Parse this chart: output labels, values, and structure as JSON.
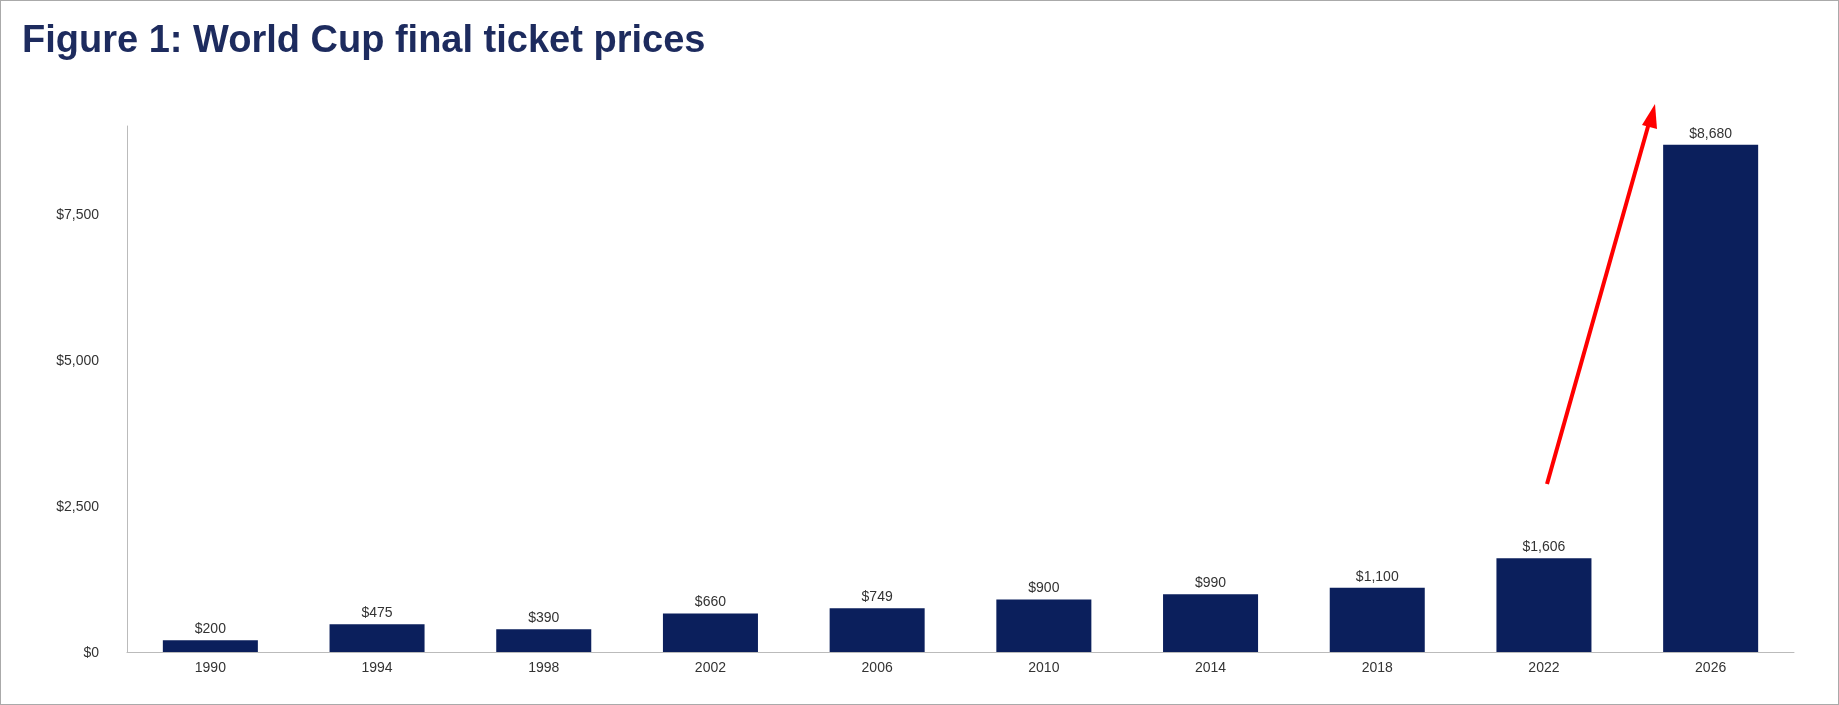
{
  "chart_data": {
    "type": "bar",
    "title": "Figure 1: World Cup final ticket prices",
    "categories": [
      "1990",
      "1994",
      "1998",
      "2002",
      "2006",
      "2010",
      "2014",
      "2018",
      "2022",
      "2026"
    ],
    "values": [
      200,
      475,
      390,
      660,
      749,
      900,
      990,
      1100,
      1606,
      8680
    ],
    "value_labels": [
      "$200",
      "$475",
      "$390",
      "$660",
      "$749",
      "$900",
      "$990",
      "$1,100",
      "$1,606",
      "$8,680"
    ],
    "color": "#0b1f5c",
    "ylim": [
      0,
      9000
    ],
    "yticks": [
      {
        "value": 0,
        "label": "$0"
      },
      {
        "value": 2500,
        "label": "$2,500"
      },
      {
        "value": 5000,
        "label": "$5,000"
      },
      {
        "value": 7500,
        "label": "$7,500"
      }
    ],
    "grid": false
  }
}
